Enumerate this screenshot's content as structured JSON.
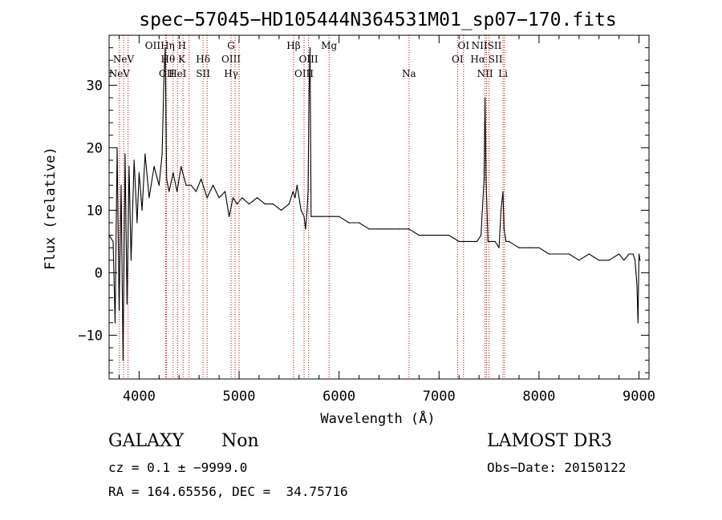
{
  "chart_data": {
    "type": "line",
    "title": "spec−57045−HD105444N364531M01_sp07−170.fits",
    "xlabel": "Wavelength (Å)",
    "ylabel": "Flux (relative)",
    "xlim": [
      3700,
      9100
    ],
    "ylim": [
      -17,
      38
    ],
    "x_ticks": [
      4000,
      5000,
      6000,
      7000,
      8000,
      9000
    ],
    "x_tick_labels": [
      "4000",
      "5000",
      "6000",
      "7000",
      "8000",
      "9000"
    ],
    "y_ticks": [
      -10,
      0,
      10,
      20,
      30
    ],
    "y_tick_labels": [
      "−10",
      "0",
      "10",
      "20",
      "30"
    ],
    "grid": false,
    "series": [
      {
        "color": "#000000",
        "x": [
          3700,
          3740,
          3760,
          3780,
          3800,
          3820,
          3840,
          3860,
          3880,
          3900,
          3920,
          3950,
          3980,
          4000,
          4030,
          4060,
          4100,
          4150,
          4200,
          4230,
          4250,
          4262,
          4275,
          4300,
          4340,
          4380,
          4420,
          4470,
          4520,
          4570,
          4620,
          4680,
          4740,
          4800,
          4860,
          4900,
          4940,
          4980,
          5030,
          5100,
          5180,
          5260,
          5340,
          5420,
          5500,
          5540,
          5560,
          5580,
          5620,
          5650,
          5665,
          5680,
          5690,
          5700,
          5710,
          5720,
          5760,
          5820,
          5900,
          6000,
          6100,
          6200,
          6300,
          6400,
          6500,
          6600,
          6700,
          6800,
          6900,
          7000,
          7100,
          7200,
          7300,
          7380,
          7420,
          7450,
          7460,
          7470,
          7490,
          7520,
          7560,
          7600,
          7620,
          7640,
          7650,
          7670,
          7700,
          7800,
          7900,
          8000,
          8100,
          8200,
          8300,
          8400,
          8500,
          8600,
          8700,
          8800,
          8850,
          8900,
          8940,
          8960,
          8970,
          8980,
          8990,
          9000,
          9010
        ],
        "y": [
          6,
          5,
          -8,
          20,
          -6,
          14,
          -14,
          19,
          -5,
          17,
          2,
          18,
          8,
          16,
          10,
          19,
          12,
          17,
          14,
          19,
          32,
          36,
          15,
          13,
          16,
          13,
          17,
          14,
          14,
          13,
          15,
          12,
          14,
          12,
          13,
          9,
          12,
          11,
          12,
          11,
          12,
          11,
          11,
          10,
          11,
          13,
          12,
          14,
          10,
          9,
          7,
          10,
          13,
          29,
          36,
          9,
          9,
          9,
          9,
          9,
          8,
          8,
          7,
          7,
          7,
          7,
          7,
          6,
          6,
          6,
          6,
          5,
          5,
          5,
          6,
          15,
          28,
          15,
          5,
          5,
          5,
          4,
          10,
          13,
          7,
          5,
          5,
          4,
          4,
          4,
          3,
          3,
          3,
          2,
          3,
          2,
          2,
          3,
          2,
          3,
          3,
          2,
          0,
          -2,
          -8,
          3,
          2
        ]
      }
    ],
    "emission_lines": [
      {
        "x": 3803,
        "top": "",
        "mid": "",
        "bot": "NeV"
      },
      {
        "x": 3845,
        "top": "",
        "mid": "NeV",
        "bot": ""
      },
      {
        "x": 3890,
        "top": "",
        "mid": "",
        "bot": ""
      },
      {
        "x": 4265,
        "top": "OIIHη H",
        "mid": "",
        "bot": ""
      },
      {
        "x": 4275,
        "top": "",
        "mid": "",
        "bot": "OII"
      },
      {
        "x": 4340,
        "top": "",
        "mid": "Hθ K",
        "bot": ""
      },
      {
        "x": 4385,
        "top": "",
        "mid": "",
        "bot": "HeI"
      },
      {
        "x": 4440,
        "top": "",
        "mid": "",
        "bot": ""
      },
      {
        "x": 4500,
        "top": "",
        "mid": "",
        "bot": ""
      },
      {
        "x": 4640,
        "top": "",
        "mid": "Hδ",
        "bot": "SII"
      },
      {
        "x": 4680,
        "top": "",
        "mid": "",
        "bot": ""
      },
      {
        "x": 4920,
        "top": "G",
        "mid": "OIII",
        "bot": "Hγ"
      },
      {
        "x": 4960,
        "top": "",
        "mid": "",
        "bot": ""
      },
      {
        "x": 5000,
        "top": "",
        "mid": "",
        "bot": ""
      },
      {
        "x": 5545,
        "top": "Hβ",
        "mid": "",
        "bot": ""
      },
      {
        "x": 5650,
        "top": "",
        "mid": "",
        "bot": "OIII"
      },
      {
        "x": 5695,
        "top": "",
        "mid": "OIII",
        "bot": ""
      },
      {
        "x": 5900,
        "top": "Mg",
        "mid": "",
        "bot": ""
      },
      {
        "x": 6700,
        "top": "",
        "mid": "",
        "bot": "Na"
      },
      {
        "x": 7185,
        "top": "",
        "mid": "OI",
        "bot": ""
      },
      {
        "x": 7245,
        "top": "OI",
        "mid": "",
        "bot": ""
      },
      {
        "x": 7460,
        "top": "",
        "mid": "",
        "bot": "NII"
      },
      {
        "x": 7475,
        "top": "NIISII",
        "mid": "Hα SII",
        "bot": ""
      },
      {
        "x": 7500,
        "top": "",
        "mid": "",
        "bot": ""
      },
      {
        "x": 7640,
        "top": "",
        "mid": "",
        "bot": "Li"
      },
      {
        "x": 7655,
        "top": "",
        "mid": "",
        "bot": ""
      }
    ]
  },
  "info": {
    "class_label": "GALAXY",
    "subclass_label": "Non",
    "survey_label": "LAMOST DR3",
    "cz_line": "cz = 0.1 ± −9999.0",
    "obs_date_line": "Obs−Date: 20150122",
    "coords_line": "RA = 164.65556, DEC =  34.75716"
  }
}
